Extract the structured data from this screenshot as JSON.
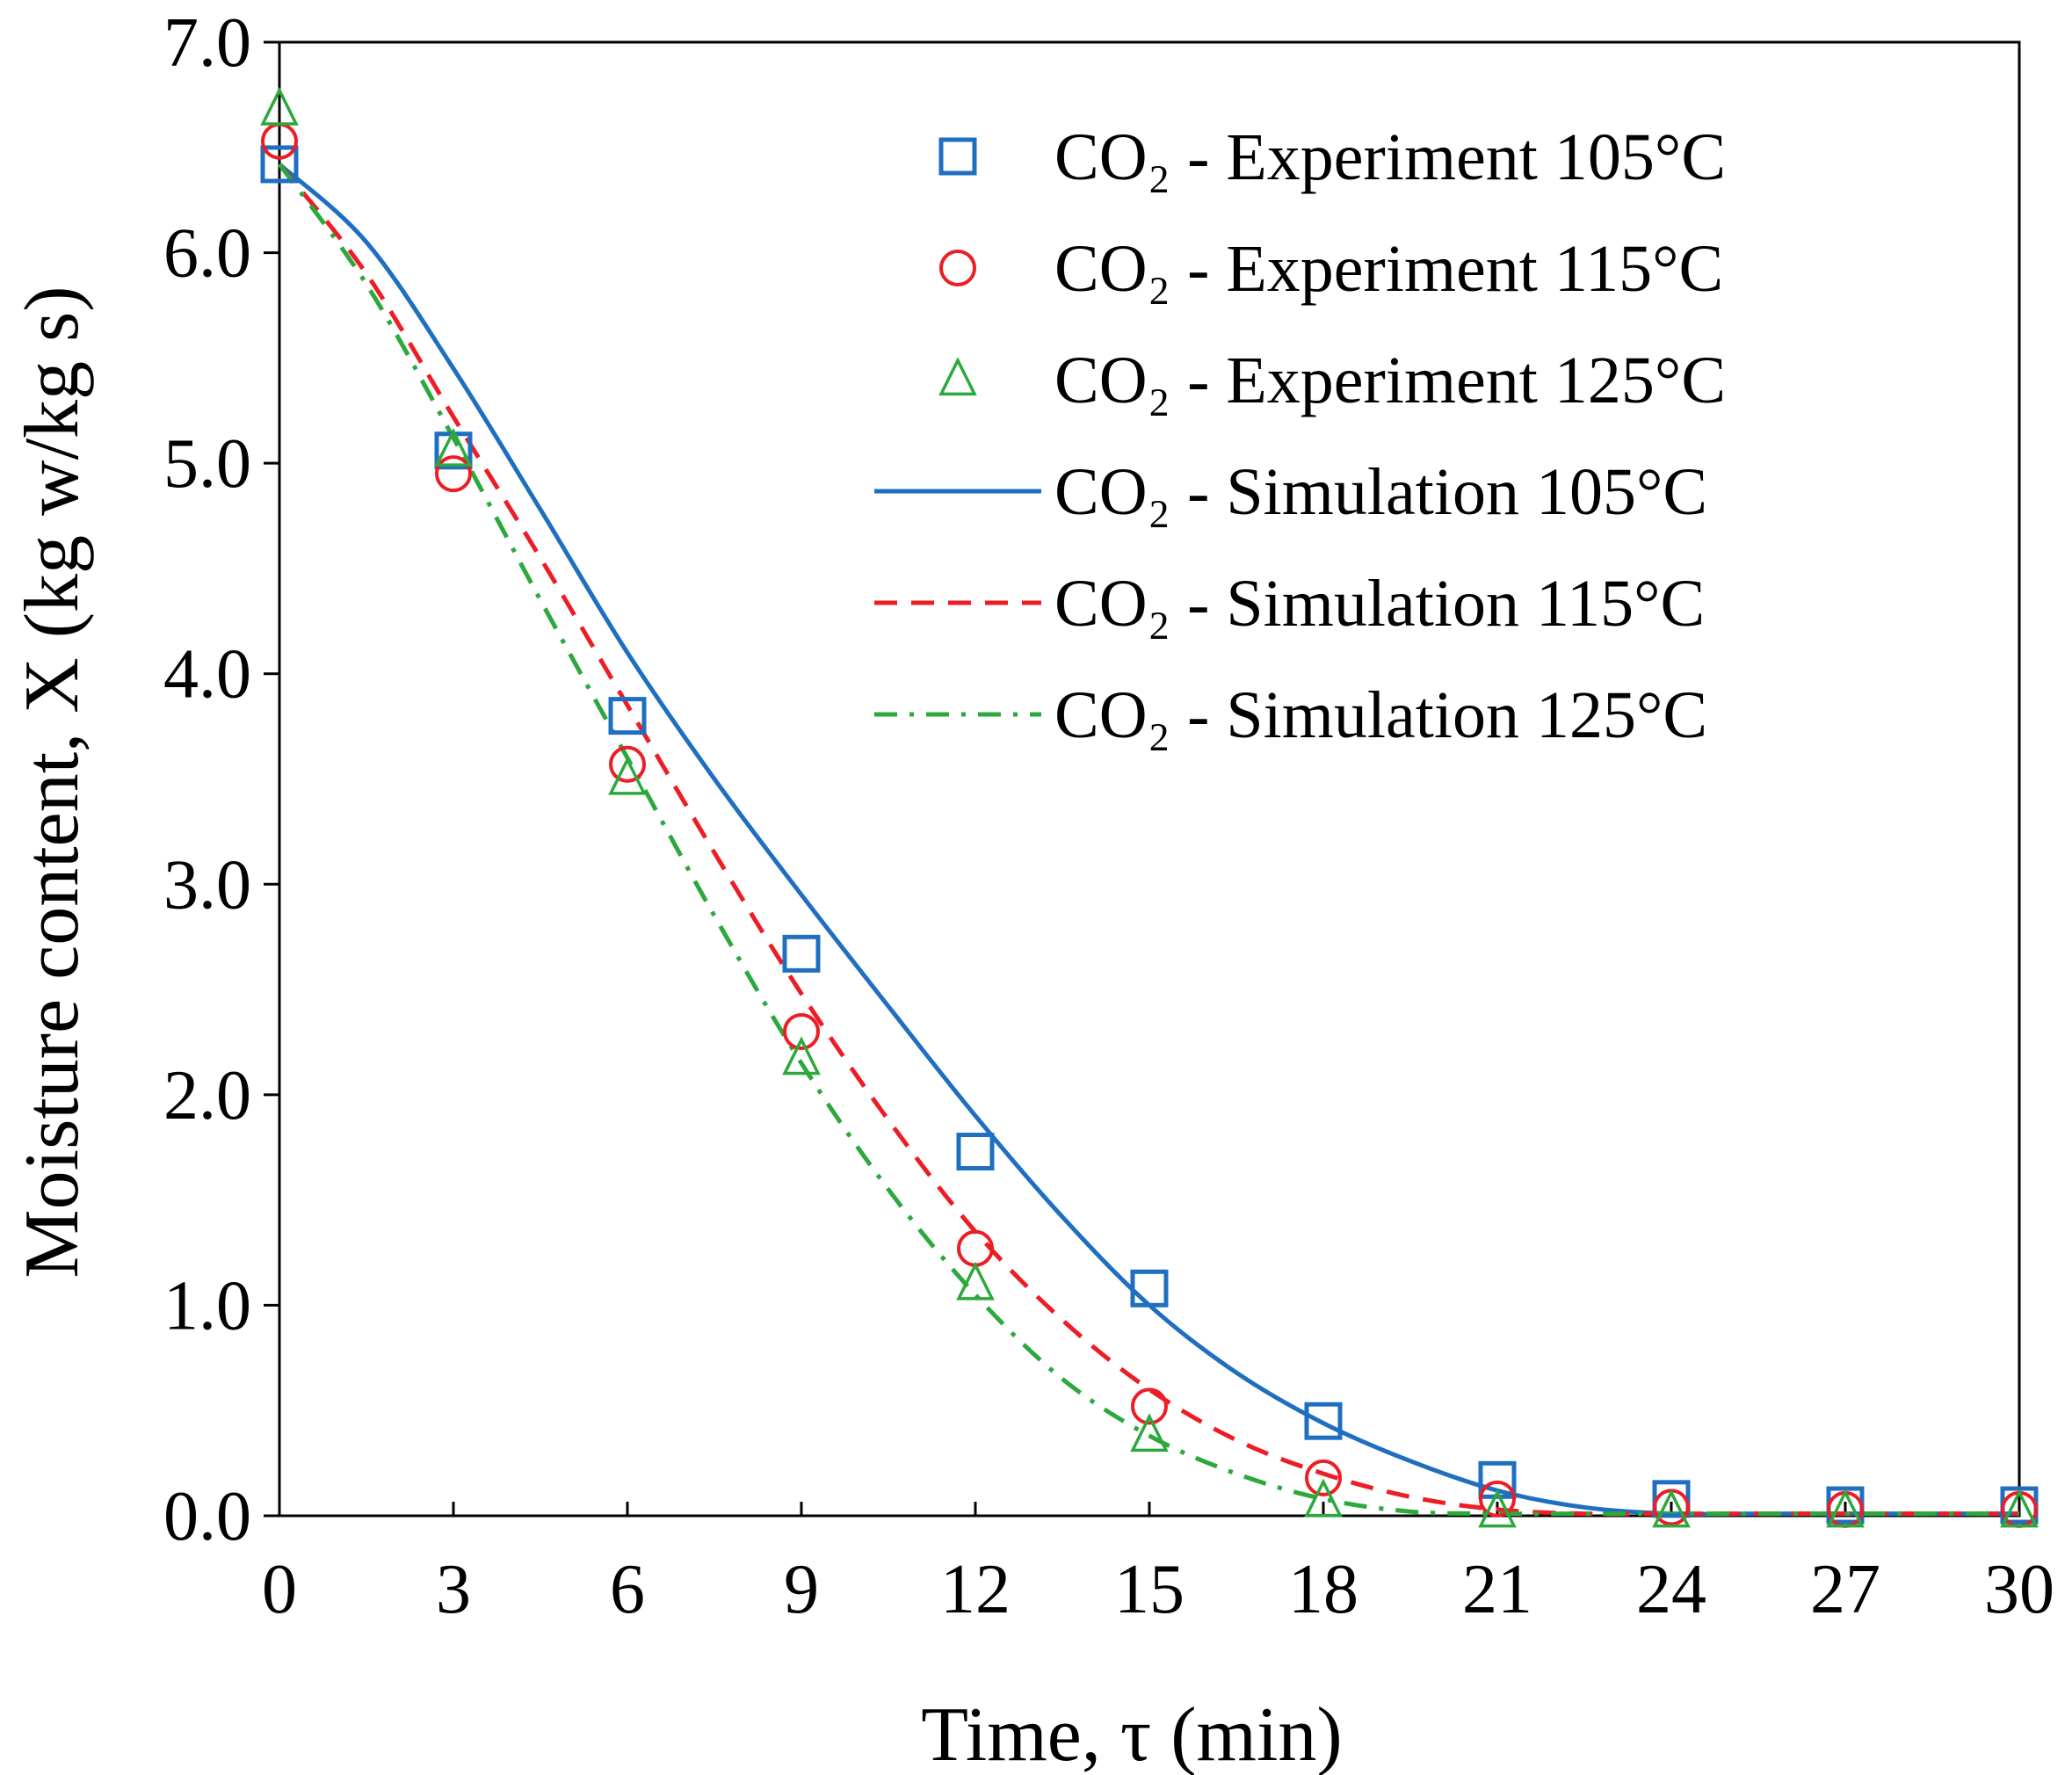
{
  "chart_data": {
    "type": "scatter",
    "title": "",
    "xlabel": "Time, τ (min)",
    "ylabel": "Moisture content, X (kg w/kg s)",
    "xlim": [
      0,
      30
    ],
    "ylim": [
      0,
      7
    ],
    "xticks": [
      0,
      3,
      6,
      9,
      12,
      15,
      18,
      21,
      24,
      27,
      30
    ],
    "xtick_labels": [
      "0",
      "3",
      "6",
      "9",
      "12",
      "15",
      "18",
      "21",
      "24",
      "27",
      "30"
    ],
    "yticks": [
      0,
      1,
      2,
      3,
      4,
      5,
      6,
      7
    ],
    "ytick_labels": [
      "0.0",
      "1.0",
      "2.0",
      "3.0",
      "4.0",
      "5.0",
      "6.0",
      "7.0"
    ],
    "grid": false,
    "legend_position": "top-right",
    "series": [
      {
        "name": "CO₂ - Experiment 105°C",
        "kind": "marker",
        "marker": "square",
        "color": "#1f6fc1",
        "x": [
          0,
          3,
          6,
          9,
          12,
          15,
          18,
          21,
          24,
          27,
          30
        ],
        "y": [
          6.42,
          5.06,
          3.8,
          2.67,
          1.73,
          1.08,
          0.45,
          0.17,
          0.08,
          0.05,
          0.05
        ]
      },
      {
        "name": "CO₂ - Experiment 115°C",
        "kind": "marker",
        "marker": "circle",
        "color": "#ee1c25",
        "x": [
          0,
          3,
          6,
          9,
          12,
          15,
          18,
          21,
          24,
          27,
          30
        ],
        "y": [
          6.53,
          4.95,
          3.57,
          2.3,
          1.27,
          0.52,
          0.18,
          0.08,
          0.04,
          0.03,
          0.03
        ]
      },
      {
        "name": "CO₂ - Experiment 125°C",
        "kind": "marker",
        "marker": "triangle",
        "color": "#2ca83c",
        "x": [
          0,
          3,
          6,
          9,
          12,
          15,
          18,
          21,
          24,
          27,
          30
        ],
        "y": [
          6.68,
          5.06,
          3.5,
          2.17,
          1.1,
          0.38,
          0.07,
          0.02,
          0.02,
          0.02,
          0.02
        ]
      },
      {
        "name": "CO₂ - Simulation 105°C",
        "kind": "line",
        "dash": "solid",
        "color": "#1f6fc1",
        "x": [
          0,
          1.5,
          3,
          4.5,
          6,
          7.5,
          9,
          10.5,
          12,
          13.5,
          15,
          16.5,
          18,
          19.5,
          21,
          22.5,
          24,
          25.5,
          27,
          28.5,
          30
        ],
        "y": [
          6.42,
          6.05,
          5.45,
          4.78,
          4.1,
          3.5,
          2.95,
          2.42,
          1.9,
          1.42,
          1.0,
          0.68,
          0.44,
          0.26,
          0.12,
          0.04,
          0.01,
          0.01,
          0.01,
          0.01,
          0.01
        ]
      },
      {
        "name": "CO₂ - Simulation 115°C",
        "kind": "line",
        "dash": "dashed",
        "color": "#ee1c25",
        "x": [
          0,
          1.5,
          3,
          4.5,
          6,
          7.5,
          9,
          10.5,
          12,
          13.5,
          15,
          16.5,
          18,
          19.5,
          21,
          22.5,
          24,
          25.5,
          27,
          28.5,
          30
        ],
        "y": [
          6.42,
          5.9,
          5.22,
          4.55,
          3.85,
          3.15,
          2.48,
          1.88,
          1.35,
          0.93,
          0.6,
          0.36,
          0.2,
          0.09,
          0.03,
          0.01,
          0.01,
          0.01,
          0.01,
          0.01,
          0.01
        ]
      },
      {
        "name": "CO₂ - Simulation 125°C",
        "kind": "line",
        "dash": "dashdot",
        "color": "#2ca83c",
        "x": [
          0,
          1.5,
          3,
          4.5,
          6,
          7.5,
          9,
          10.5,
          12,
          13.5,
          15,
          16.5,
          18,
          19.5,
          21,
          22.5,
          24,
          25.5,
          27,
          28.5,
          30
        ],
        "y": [
          6.42,
          5.85,
          5.12,
          4.35,
          3.6,
          2.85,
          2.15,
          1.55,
          1.05,
          0.65,
          0.38,
          0.2,
          0.08,
          0.02,
          0.01,
          0.01,
          0.01,
          0.01,
          0.01,
          0.01,
          0.01
        ]
      }
    ]
  }
}
